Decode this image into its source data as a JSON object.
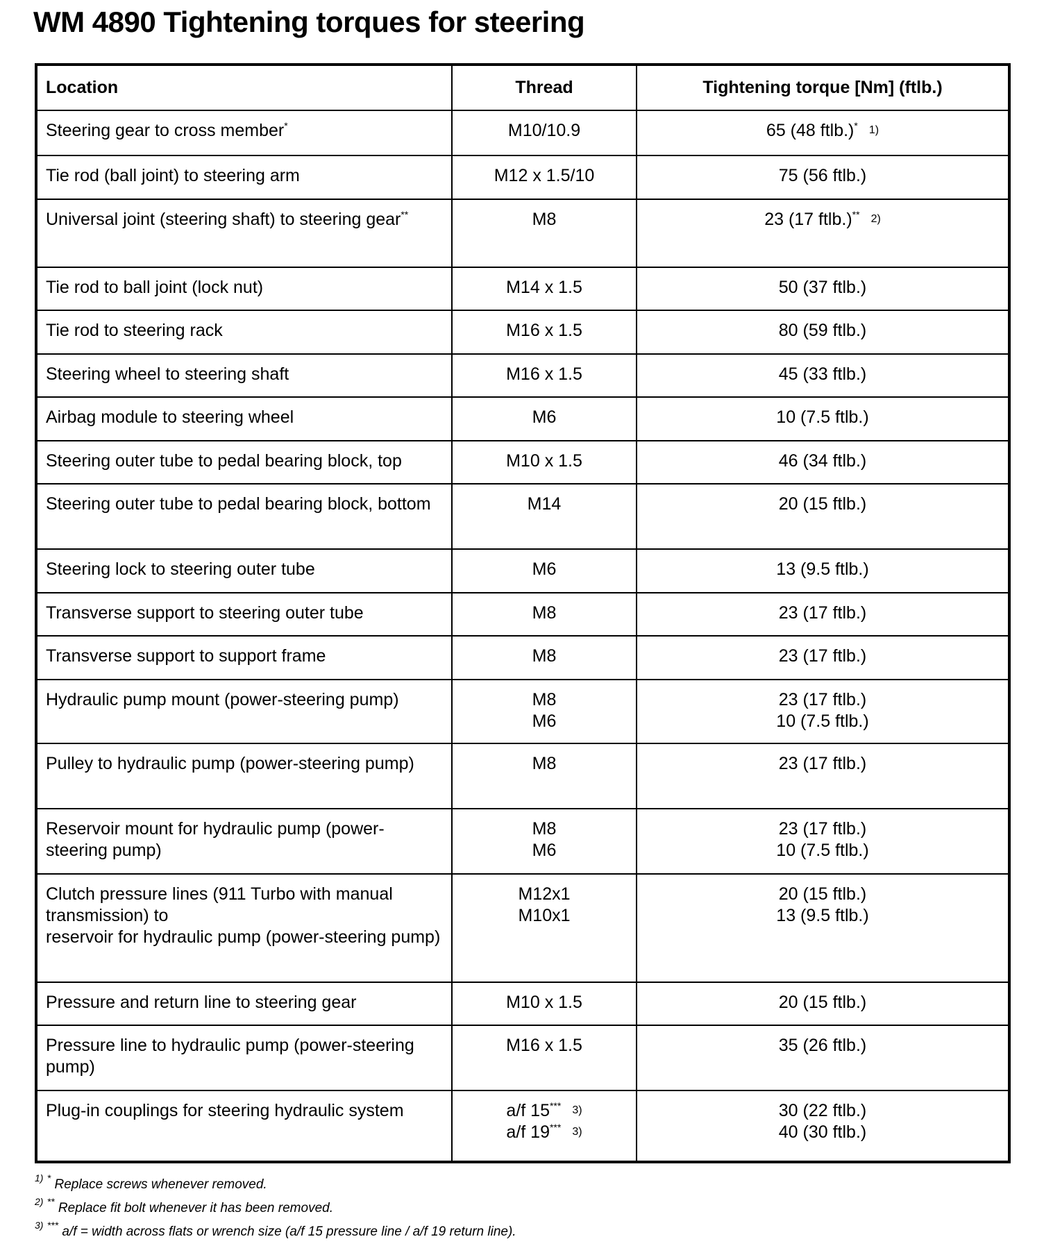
{
  "header": {
    "title": "WM 4890 Tightening torques for steering"
  },
  "table": {
    "columns": [
      "Location",
      "Thread",
      "Tightening torque [Nm] (ftlb.)"
    ],
    "rows": [
      {
        "location": [
          {
            "text": "Steering gear to cross member",
            "sup": "*"
          }
        ],
        "thread": [
          "M10/10.9"
        ],
        "torque": [
          {
            "text": "65 (48 ftlb.)",
            "sup": "*",
            "ref": "1)"
          }
        ]
      },
      {
        "location": [
          "Tie rod (ball joint) to steering arm"
        ],
        "thread": [
          "M12 x 1.5/10"
        ],
        "torque": [
          "75 (56 ftlb.)"
        ]
      },
      {
        "location": [
          {
            "text": "Universal joint (steering shaft) to steering gear",
            "sup": "**"
          }
        ],
        "thread": [
          "M8"
        ],
        "torque": [
          {
            "text": "23 (17 ftlb.)",
            "sup": "**",
            "ref": "2)"
          }
        ]
      },
      {
        "location": [
          "Tie rod to ball joint (lock nut)"
        ],
        "thread": [
          "M14 x 1.5"
        ],
        "torque": [
          "50 (37 ftlb.)"
        ]
      },
      {
        "location": [
          "Tie rod to steering rack"
        ],
        "thread": [
          "M16 x 1.5"
        ],
        "torque": [
          "80 (59 ftlb.)"
        ]
      },
      {
        "location": [
          "Steering wheel to steering shaft"
        ],
        "thread": [
          "M16 x 1.5"
        ],
        "torque": [
          "45 (33 ftlb.)"
        ]
      },
      {
        "location": [
          "Airbag module to steering wheel"
        ],
        "thread": [
          "M6"
        ],
        "torque": [
          "10 (7.5 ftlb.)"
        ]
      },
      {
        "location": [
          "Steering outer tube to pedal bearing block, top"
        ],
        "thread": [
          "M10 x 1.5"
        ],
        "torque": [
          "46 (34 ftlb.)"
        ]
      },
      {
        "location": [
          "Steering outer tube to pedal bearing block, bottom"
        ],
        "thread": [
          "M14"
        ],
        "torque": [
          "20 (15 ftlb.)"
        ]
      },
      {
        "location": [
          "Steering lock to steering outer tube"
        ],
        "thread": [
          "M6"
        ],
        "torque": [
          "13 (9.5 ftlb.)"
        ]
      },
      {
        "location": [
          "Transverse support to steering outer tube"
        ],
        "thread": [
          "M8"
        ],
        "torque": [
          "23 (17 ftlb.)"
        ]
      },
      {
        "location": [
          "Transverse support to support frame"
        ],
        "thread": [
          "M8"
        ],
        "torque": [
          "23 (17 ftlb.)"
        ]
      },
      {
        "location": [
          "Hydraulic pump mount (power-steering pump)"
        ],
        "thread": [
          "M8",
          "M6"
        ],
        "torque": [
          "23 (17 ftlb.)",
          "10 (7.5 ftlb.)"
        ]
      },
      {
        "location": [
          "Pulley to hydraulic pump (power-steering pump)"
        ],
        "thread": [
          "M8"
        ],
        "torque": [
          "23 (17 ftlb.)"
        ]
      },
      {
        "location": [
          "Reservoir mount for hydraulic pump (power-steering pump)"
        ],
        "thread": [
          "M8",
          "M6"
        ],
        "torque": [
          "23 (17 ftlb.)",
          "10 (7.5 ftlb.)"
        ]
      },
      {
        "location": [
          "Clutch pressure lines (911 Turbo with manual transmission) to",
          "reservoir for hydraulic pump (power-steering pump)"
        ],
        "thread": [
          "M12x1",
          "M10x1"
        ],
        "torque": [
          "20 (15 ftlb.)",
          "13 (9.5 ftlb.)"
        ]
      },
      {
        "location": [
          "Pressure and return line to steering gear"
        ],
        "thread": [
          "M10 x 1.5"
        ],
        "torque": [
          "20 (15 ftlb.)"
        ]
      },
      {
        "location": [
          "Pressure line to hydraulic pump (power-steering pump)"
        ],
        "thread": [
          "M16 x 1.5"
        ],
        "torque": [
          "35 (26 ftlb.)"
        ]
      },
      {
        "location": [
          "Plug-in couplings for steering hydraulic system"
        ],
        "thread": [
          {
            "text": "a/f 15",
            "sup": "***",
            "ref": "3)"
          },
          {
            "text": "a/f 19",
            "sup": "***",
            "ref": "3)"
          }
        ],
        "torque": [
          "30 (22 ftlb.)",
          "40 (30 ftlb.)"
        ]
      }
    ]
  },
  "footnotes": [
    {
      "num": "1)",
      "mark": "*",
      "text": "Replace screws whenever removed."
    },
    {
      "num": "2)",
      "mark": "**",
      "text": "Replace fit bolt whenever it has been removed."
    },
    {
      "num": "3)",
      "mark": "***",
      "text": "a/f = width across flats or wrench size (a/f 15 pressure line / a/f 19 return line)."
    }
  ]
}
